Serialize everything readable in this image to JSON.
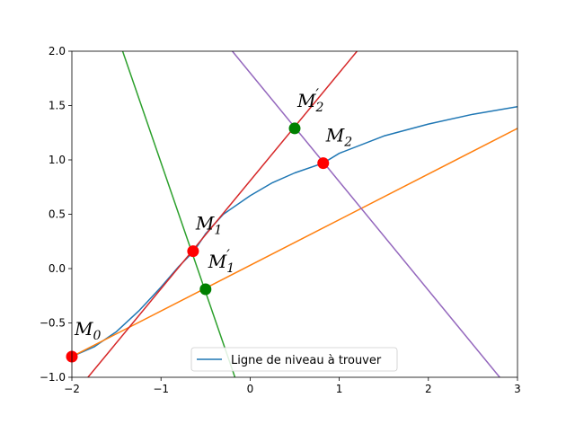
{
  "chart_data": {
    "type": "line",
    "xlim": [
      -2,
      3
    ],
    "ylim": [
      -1,
      2
    ],
    "x_ticks": [
      -2,
      -1,
      0,
      1,
      2,
      3
    ],
    "x_tick_labels": [
      "−2",
      "−1",
      "0",
      "1",
      "2",
      "3"
    ],
    "y_ticks": [
      -1.0,
      -0.5,
      0.0,
      0.5,
      1.0,
      1.5,
      2.0
    ],
    "y_tick_labels": [
      "−1.0",
      "−0.5",
      "0.0",
      "0.5",
      "1.0",
      "1.5",
      "2.0"
    ],
    "grid": false,
    "legend": {
      "placement": "lower center",
      "entries": [
        {
          "label": "Ligne de niveau à trouver",
          "color": "#1f77b4"
        }
      ]
    },
    "series": [
      {
        "name": "Ligne de niveau à trouver",
        "color": "#1f77b4",
        "x": [
          -2,
          -1.75,
          -1.5,
          -1.25,
          -1.0,
          -0.8,
          -0.63,
          -0.5,
          -0.3,
          0.0,
          0.25,
          0.5,
          0.82,
          1.0,
          1.5,
          2.0,
          2.5,
          3.0
        ],
        "y": [
          -0.81,
          -0.72,
          -0.58,
          -0.39,
          -0.17,
          0.02,
          0.16,
          0.32,
          0.5,
          0.67,
          0.79,
          0.88,
          0.97,
          1.06,
          1.22,
          1.33,
          1.42,
          1.49
        ]
      },
      {
        "color": "#ff7f0e",
        "x": [
          -2,
          3
        ],
        "y": [
          -0.81,
          1.29
        ]
      },
      {
        "color": "#2ca02c",
        "x": [
          -1.43,
          -0.17
        ],
        "y": [
          2.0,
          -1.0
        ]
      },
      {
        "color": "#d62728",
        "x": [
          -1.82,
          1.2
        ],
        "y": [
          -1.0,
          2.0
        ]
      },
      {
        "color": "#9467bd",
        "x": [
          -0.2,
          2.8
        ],
        "y": [
          2.0,
          -1.0
        ]
      }
    ],
    "points": [
      {
        "label": "M",
        "sub": "0",
        "prime": false,
        "x": -2.0,
        "y": -0.81,
        "color": "#ff0000"
      },
      {
        "label": "M",
        "sub": "1",
        "prime": false,
        "x": -0.64,
        "y": 0.16,
        "color": "#ff0000"
      },
      {
        "label": "M",
        "sub": "1",
        "prime": true,
        "x": -0.5,
        "y": -0.19,
        "color": "#008000"
      },
      {
        "label": "M",
        "sub": "2",
        "prime": true,
        "x": 0.5,
        "y": 1.29,
        "color": "#008000"
      },
      {
        "label": "M",
        "sub": "2",
        "prime": false,
        "x": 0.82,
        "y": 0.97,
        "color": "#ff0000"
      }
    ]
  }
}
